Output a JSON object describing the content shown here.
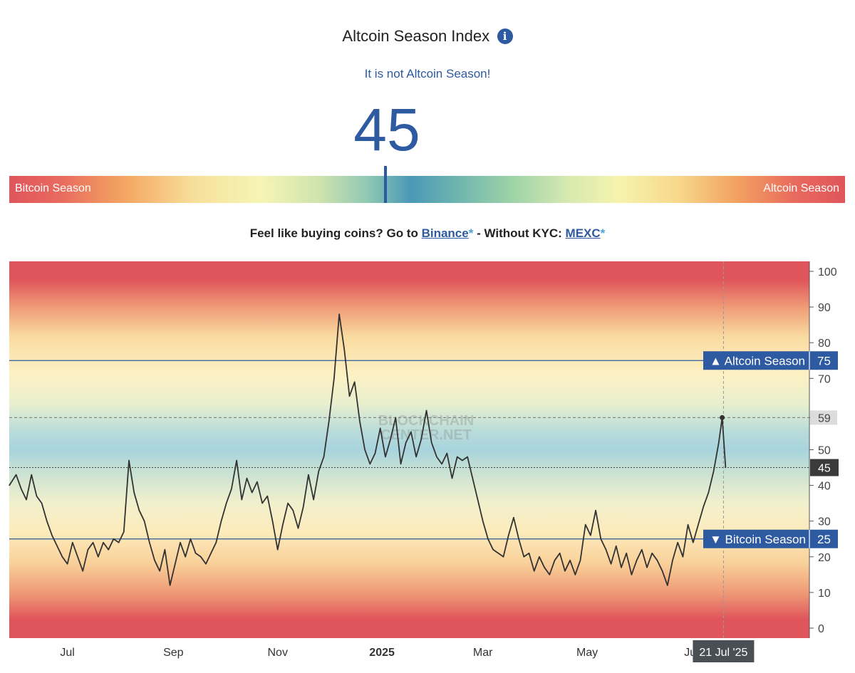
{
  "header": {
    "title": "Altcoin Season Index",
    "info_icon": "i",
    "status": "It is not Altcoin Season!",
    "index_value": "45"
  },
  "gauge": {
    "left_label": "Bitcoin Season",
    "right_label": "Altcoin Season",
    "value": 45
  },
  "promo": {
    "prefix": "Feel like buying coins? Go to ",
    "link1": "Binance",
    "star1": "*",
    "middle": " - Without KYC: ",
    "link2": "MEXC",
    "star2": "*"
  },
  "colors": {
    "accent": "#2d5aa0",
    "line": "#333333",
    "label_bg": "#3a3a3a"
  },
  "chart_data": {
    "type": "line",
    "ylim": [
      0,
      100
    ],
    "yticks": [
      0,
      10,
      20,
      30,
      40,
      50,
      59,
      70,
      80,
      90,
      100
    ],
    "xticks": [
      {
        "label": "Jul",
        "bold": false,
        "date": "2024-07-01"
      },
      {
        "label": "Sep",
        "bold": false,
        "date": "2024-09-01"
      },
      {
        "label": "Nov",
        "bold": false,
        "date": "2024-11-01"
      },
      {
        "label": "2025",
        "bold": true,
        "date": "2025-01-01"
      },
      {
        "label": "Mar",
        "bold": false,
        "date": "2025-03-01"
      },
      {
        "label": "May",
        "bold": false,
        "date": "2025-05-01"
      },
      {
        "label": "Jul",
        "bold": false,
        "date": "2025-07-01"
      }
    ],
    "thresholds": [
      {
        "name": "Altcoin Season",
        "value": 75,
        "arrow": "▲"
      },
      {
        "name": "Bitcoin Season",
        "value": 25,
        "arrow": "▼"
      }
    ],
    "peak_marker": {
      "date": "2025-07-19",
      "value": 59
    },
    "current": {
      "date": "2025-07-21",
      "value": 45,
      "label": "21 Jul '25"
    },
    "watermark": [
      "BLOCKCHAIN",
      "CENTER.NET"
    ],
    "series": [
      {
        "points": [
          [
            "2024-05-28",
            40
          ],
          [
            "2024-06-01",
            43
          ],
          [
            "2024-06-04",
            39
          ],
          [
            "2024-06-07",
            36
          ],
          [
            "2024-06-10",
            43
          ],
          [
            "2024-06-13",
            37
          ],
          [
            "2024-06-16",
            35
          ],
          [
            "2024-06-19",
            30
          ],
          [
            "2024-06-22",
            26
          ],
          [
            "2024-06-25",
            23
          ],
          [
            "2024-06-28",
            20
          ],
          [
            "2024-07-01",
            18
          ],
          [
            "2024-07-04",
            24
          ],
          [
            "2024-07-07",
            20
          ],
          [
            "2024-07-10",
            16
          ],
          [
            "2024-07-13",
            22
          ],
          [
            "2024-07-16",
            24
          ],
          [
            "2024-07-19",
            20
          ],
          [
            "2024-07-22",
            24
          ],
          [
            "2024-07-25",
            22
          ],
          [
            "2024-07-28",
            25
          ],
          [
            "2024-07-31",
            24
          ],
          [
            "2024-08-03",
            27
          ],
          [
            "2024-08-06",
            47
          ],
          [
            "2024-08-09",
            38
          ],
          [
            "2024-08-12",
            33
          ],
          [
            "2024-08-15",
            30
          ],
          [
            "2024-08-18",
            24
          ],
          [
            "2024-08-21",
            19
          ],
          [
            "2024-08-24",
            16
          ],
          [
            "2024-08-27",
            22
          ],
          [
            "2024-08-30",
            12
          ],
          [
            "2024-09-02",
            18
          ],
          [
            "2024-09-05",
            24
          ],
          [
            "2024-09-08",
            20
          ],
          [
            "2024-09-11",
            25
          ],
          [
            "2024-09-14",
            21
          ],
          [
            "2024-09-17",
            20
          ],
          [
            "2024-09-20",
            18
          ],
          [
            "2024-09-23",
            21
          ],
          [
            "2024-09-26",
            24
          ],
          [
            "2024-09-29",
            30
          ],
          [
            "2024-10-02",
            35
          ],
          [
            "2024-10-05",
            39
          ],
          [
            "2024-10-08",
            47
          ],
          [
            "2024-10-11",
            36
          ],
          [
            "2024-10-14",
            42
          ],
          [
            "2024-10-17",
            38
          ],
          [
            "2024-10-20",
            41
          ],
          [
            "2024-10-23",
            35
          ],
          [
            "2024-10-26",
            37
          ],
          [
            "2024-10-29",
            30
          ],
          [
            "2024-11-01",
            22
          ],
          [
            "2024-11-04",
            29
          ],
          [
            "2024-11-07",
            35
          ],
          [
            "2024-11-10",
            33
          ],
          [
            "2024-11-13",
            28
          ],
          [
            "2024-11-16",
            34
          ],
          [
            "2024-11-19",
            43
          ],
          [
            "2024-11-22",
            36
          ],
          [
            "2024-11-25",
            44
          ],
          [
            "2024-11-28",
            48
          ],
          [
            "2024-12-01",
            58
          ],
          [
            "2024-12-04",
            70
          ],
          [
            "2024-12-07",
            88
          ],
          [
            "2024-12-10",
            78
          ],
          [
            "2024-12-13",
            65
          ],
          [
            "2024-12-16",
            69
          ],
          [
            "2024-12-19",
            58
          ],
          [
            "2024-12-22",
            50
          ],
          [
            "2024-12-25",
            46
          ],
          [
            "2024-12-28",
            49
          ],
          [
            "2024-12-31",
            56
          ],
          [
            "2025-01-03",
            48
          ],
          [
            "2025-01-06",
            53
          ],
          [
            "2025-01-09",
            59
          ],
          [
            "2025-01-12",
            46
          ],
          [
            "2025-01-15",
            52
          ],
          [
            "2025-01-18",
            55
          ],
          [
            "2025-01-21",
            48
          ],
          [
            "2025-01-24",
            53
          ],
          [
            "2025-01-27",
            61
          ],
          [
            "2025-01-30",
            52
          ],
          [
            "2025-02-02",
            48
          ],
          [
            "2025-02-05",
            46
          ],
          [
            "2025-02-08",
            49
          ],
          [
            "2025-02-11",
            42
          ],
          [
            "2025-02-14",
            48
          ],
          [
            "2025-02-17",
            47
          ],
          [
            "2025-02-20",
            48
          ],
          [
            "2025-02-23",
            42
          ],
          [
            "2025-02-26",
            36
          ],
          [
            "2025-03-01",
            30
          ],
          [
            "2025-03-04",
            25
          ],
          [
            "2025-03-07",
            22
          ],
          [
            "2025-03-10",
            21
          ],
          [
            "2025-03-13",
            20
          ],
          [
            "2025-03-16",
            26
          ],
          [
            "2025-03-19",
            31
          ],
          [
            "2025-03-22",
            25
          ],
          [
            "2025-03-25",
            20
          ],
          [
            "2025-03-28",
            21
          ],
          [
            "2025-03-31",
            16
          ],
          [
            "2025-04-03",
            20
          ],
          [
            "2025-04-06",
            17
          ],
          [
            "2025-04-09",
            15
          ],
          [
            "2025-04-12",
            19
          ],
          [
            "2025-04-15",
            21
          ],
          [
            "2025-04-18",
            16
          ],
          [
            "2025-04-21",
            19
          ],
          [
            "2025-04-24",
            15
          ],
          [
            "2025-04-27",
            19
          ],
          [
            "2025-04-30",
            29
          ],
          [
            "2025-05-03",
            26
          ],
          [
            "2025-05-06",
            33
          ],
          [
            "2025-05-09",
            25
          ],
          [
            "2025-05-12",
            22
          ],
          [
            "2025-05-15",
            18
          ],
          [
            "2025-05-18",
            23
          ],
          [
            "2025-05-21",
            17
          ],
          [
            "2025-05-24",
            21
          ],
          [
            "2025-05-27",
            15
          ],
          [
            "2025-05-30",
            19
          ],
          [
            "2025-06-02",
            22
          ],
          [
            "2025-06-05",
            17
          ],
          [
            "2025-06-08",
            21
          ],
          [
            "2025-06-11",
            19
          ],
          [
            "2025-06-14",
            16
          ],
          [
            "2025-06-17",
            12
          ],
          [
            "2025-06-20",
            19
          ],
          [
            "2025-06-23",
            24
          ],
          [
            "2025-06-26",
            20
          ],
          [
            "2025-06-29",
            29
          ],
          [
            "2025-07-02",
            24
          ],
          [
            "2025-07-05",
            29
          ],
          [
            "2025-07-08",
            34
          ],
          [
            "2025-07-11",
            38
          ],
          [
            "2025-07-14",
            44
          ],
          [
            "2025-07-17",
            52
          ],
          [
            "2025-07-19",
            59
          ],
          [
            "2025-07-21",
            45
          ]
        ]
      }
    ]
  }
}
